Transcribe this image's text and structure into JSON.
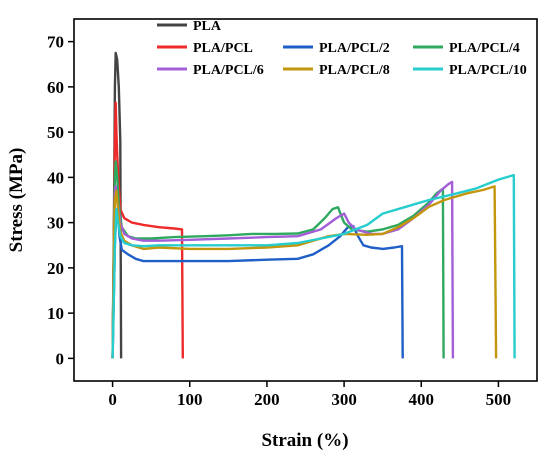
{
  "chart_data": {
    "type": "line",
    "xlabel": "Strain (%)",
    "ylabel": "Stress (MPa)",
    "xlim": [
      -50,
      550
    ],
    "ylim": [
      -5,
      75
    ],
    "xticks": [
      0,
      100,
      200,
      300,
      400,
      500
    ],
    "yticks": [
      0,
      10,
      20,
      30,
      40,
      50,
      60,
      70
    ],
    "legend_position": "top",
    "series": [
      {
        "name": "PLA",
        "color": "#444444",
        "points": [
          [
            0,
            0
          ],
          [
            2,
            35
          ],
          [
            3,
            60
          ],
          [
            4,
            67.5
          ],
          [
            6,
            66
          ],
          [
            8,
            60
          ],
          [
            10,
            48
          ],
          [
            11,
            0
          ]
        ]
      },
      {
        "name": "PLA/PCL",
        "color": "#ee2a2a",
        "points": [
          [
            0,
            0
          ],
          [
            2,
            30
          ],
          [
            3,
            48
          ],
          [
            4,
            56.5
          ],
          [
            5,
            50
          ],
          [
            6,
            45
          ],
          [
            8,
            38
          ],
          [
            10,
            33
          ],
          [
            15,
            31
          ],
          [
            25,
            30
          ],
          [
            40,
            29.5
          ],
          [
            60,
            29
          ],
          [
            80,
            28.7
          ],
          [
            90,
            28.5
          ],
          [
            91,
            0
          ]
        ]
      },
      {
        "name": "PLA/PCL/2",
        "color": "#1f5fc8",
        "points": [
          [
            0,
            0
          ],
          [
            3,
            25
          ],
          [
            5,
            33
          ],
          [
            7,
            32
          ],
          [
            9,
            27
          ],
          [
            12,
            24
          ],
          [
            20,
            23
          ],
          [
            30,
            22
          ],
          [
            40,
            21.5
          ],
          [
            60,
            21.5
          ],
          [
            100,
            21.5
          ],
          [
            150,
            21.5
          ],
          [
            200,
            21.8
          ],
          [
            240,
            22
          ],
          [
            260,
            23
          ],
          [
            280,
            25
          ],
          [
            295,
            27
          ],
          [
            305,
            29
          ],
          [
            312,
            29.2
          ],
          [
            318,
            27
          ],
          [
            325,
            25
          ],
          [
            335,
            24.5
          ],
          [
            350,
            24.2
          ],
          [
            365,
            24.5
          ],
          [
            375,
            24.8
          ],
          [
            376,
            0
          ]
        ]
      },
      {
        "name": "PLA/PCL/4",
        "color": "#2fa860",
        "points": [
          [
            0,
            0
          ],
          [
            2,
            30
          ],
          [
            3,
            40
          ],
          [
            4,
            43.5
          ],
          [
            6,
            40
          ],
          [
            8,
            34
          ],
          [
            12,
            29
          ],
          [
            20,
            27
          ],
          [
            30,
            26.5
          ],
          [
            50,
            26.5
          ],
          [
            80,
            26.8
          ],
          [
            120,
            27
          ],
          [
            150,
            27.2
          ],
          [
            180,
            27.5
          ],
          [
            210,
            27.5
          ],
          [
            240,
            27.6
          ],
          [
            260,
            28.5
          ],
          [
            275,
            31
          ],
          [
            285,
            33
          ],
          [
            292,
            33.4
          ],
          [
            300,
            30
          ],
          [
            310,
            28.5
          ],
          [
            330,
            28
          ],
          [
            350,
            28.5
          ],
          [
            370,
            29.5
          ],
          [
            390,
            31.5
          ],
          [
            410,
            34.5
          ],
          [
            420,
            36.5
          ],
          [
            428,
            37.5
          ],
          [
            429,
            0
          ]
        ]
      },
      {
        "name": "PLA/PCL/6",
        "color": "#a25fd8",
        "points": [
          [
            0,
            0
          ],
          [
            2,
            28
          ],
          [
            3,
            36
          ],
          [
            4,
            38
          ],
          [
            6,
            35
          ],
          [
            10,
            30
          ],
          [
            15,
            27.5
          ],
          [
            25,
            26.5
          ],
          [
            40,
            26
          ],
          [
            60,
            26
          ],
          [
            100,
            26.2
          ],
          [
            150,
            26.5
          ],
          [
            200,
            26.8
          ],
          [
            240,
            27
          ],
          [
            270,
            28.5
          ],
          [
            290,
            31
          ],
          [
            300,
            32
          ],
          [
            306,
            30
          ],
          [
            315,
            28.5
          ],
          [
            335,
            27.5
          ],
          [
            350,
            27.5
          ],
          [
            370,
            28.5
          ],
          [
            390,
            31
          ],
          [
            410,
            34
          ],
          [
            425,
            37
          ],
          [
            435,
            38.5
          ],
          [
            440,
            39
          ],
          [
            441,
            0
          ]
        ]
      },
      {
        "name": "PLA/PCL/8",
        "color": "#c4960e",
        "points": [
          [
            0,
            0
          ],
          [
            2,
            28
          ],
          [
            3,
            35
          ],
          [
            5,
            37
          ],
          [
            7,
            33
          ],
          [
            10,
            28
          ],
          [
            15,
            26
          ],
          [
            25,
            25
          ],
          [
            40,
            24.2
          ],
          [
            60,
            24.5
          ],
          [
            100,
            24.2
          ],
          [
            150,
            24.2
          ],
          [
            200,
            24.5
          ],
          [
            240,
            25
          ],
          [
            260,
            26
          ],
          [
            280,
            27
          ],
          [
            300,
            27.5
          ],
          [
            330,
            27.3
          ],
          [
            350,
            27.5
          ],
          [
            370,
            29
          ],
          [
            390,
            31
          ],
          [
            410,
            33.5
          ],
          [
            430,
            35
          ],
          [
            460,
            36.5
          ],
          [
            480,
            37.2
          ],
          [
            495,
            38
          ],
          [
            497,
            0
          ]
        ]
      },
      {
        "name": "PLA/PCL/10",
        "color": "#27cdcd",
        "points": [
          [
            0,
            0
          ],
          [
            3,
            25
          ],
          [
            5,
            33
          ],
          [
            7,
            30
          ],
          [
            10,
            27
          ],
          [
            15,
            25.5
          ],
          [
            25,
            25
          ],
          [
            40,
            24.8
          ],
          [
            60,
            25
          ],
          [
            100,
            25
          ],
          [
            150,
            25
          ],
          [
            200,
            25
          ],
          [
            240,
            25.5
          ],
          [
            270,
            26.5
          ],
          [
            300,
            27.5
          ],
          [
            330,
            29.5
          ],
          [
            350,
            32
          ],
          [
            380,
            33.5
          ],
          [
            410,
            35
          ],
          [
            440,
            36.2
          ],
          [
            470,
            37.5
          ],
          [
            500,
            39.5
          ],
          [
            520,
            40.5
          ],
          [
            521,
            0
          ]
        ]
      }
    ]
  }
}
